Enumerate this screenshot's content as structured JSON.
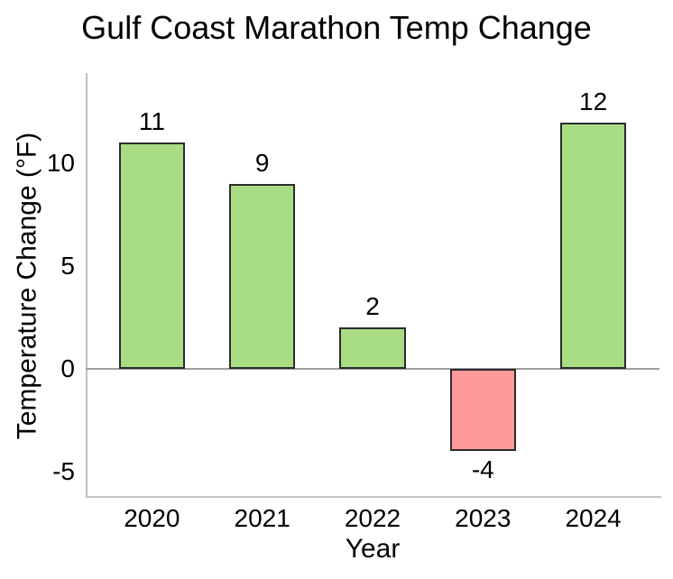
{
  "chart_data": {
    "type": "bar",
    "title": "Gulf Coast Marathon Temp Change",
    "xlabel": "Year",
    "ylabel": "Temperature Change (°F)",
    "categories": [
      "2020",
      "2021",
      "2022",
      "2023",
      "2024"
    ],
    "values": [
      11,
      9,
      2,
      -4,
      12
    ],
    "bar_labels": [
      "11",
      "9",
      "2",
      "-4",
      "12"
    ],
    "yticks": [
      -5,
      0,
      5,
      10
    ],
    "ylim": [
      -6.2,
      14.4
    ],
    "grid": false,
    "legend": false,
    "zero_line": true,
    "colors": {
      "positive_fill": "#a9dd84",
      "negative_fill": "#fc9a9a",
      "bar_border": "#2b2b2b",
      "axis_line": "#c2c2c2",
      "zero_line": "#9e9e9e",
      "text": "#000000"
    }
  }
}
